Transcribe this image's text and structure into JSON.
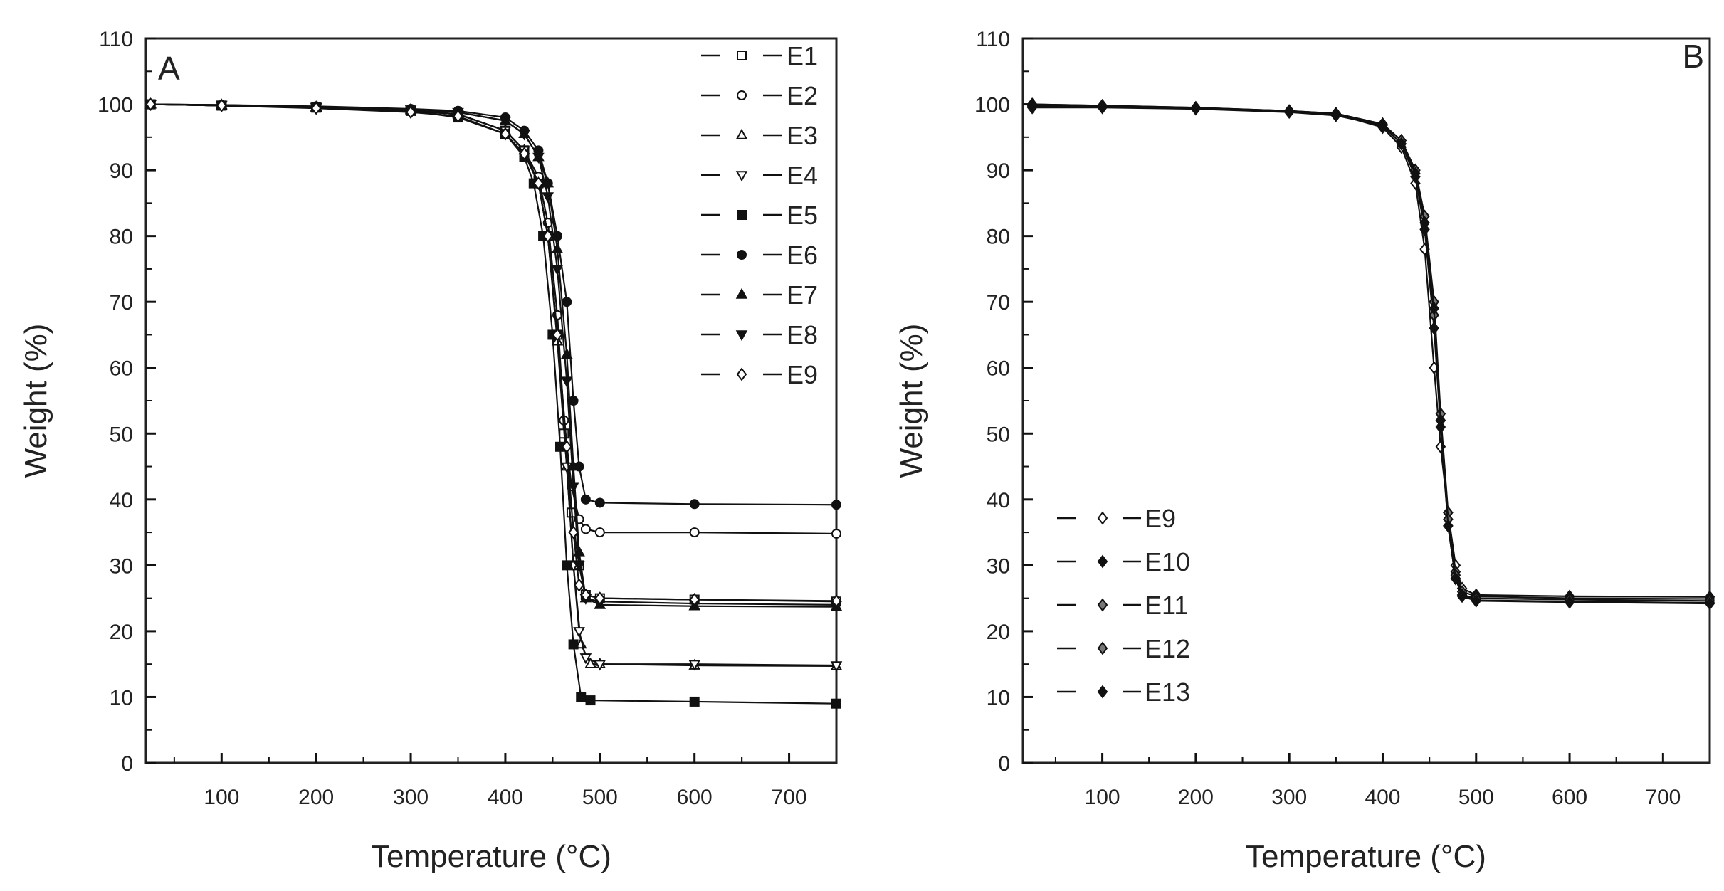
{
  "colors": {
    "ink": "#111111",
    "axis": "#222222",
    "background": "#ffffff"
  },
  "chart_data": [
    {
      "panel": "A",
      "type": "line",
      "xlabel": "Temperature (°C)",
      "ylabel": "Weight (%)",
      "xlim": [
        20,
        750
      ],
      "ylim": [
        0,
        110
      ],
      "xticks": [
        100,
        200,
        300,
        400,
        500,
        600,
        700
      ],
      "yticks": [
        0,
        10,
        20,
        30,
        40,
        50,
        60,
        70,
        80,
        90,
        100,
        110
      ],
      "grid": false,
      "legend_position": "top-right",
      "series": [
        {
          "name": "E1",
          "marker": "square-open",
          "x": [
            25,
            100,
            200,
            300,
            350,
            400,
            420,
            435,
            445,
            455,
            462,
            470,
            478,
            485,
            500,
            600,
            750
          ],
          "y": [
            100,
            99.8,
            99.5,
            99.0,
            98.5,
            96,
            93,
            88,
            80,
            65,
            50,
            38,
            30,
            25.5,
            25,
            24.8,
            24.5
          ]
        },
        {
          "name": "E2",
          "marker": "circle-open",
          "x": [
            25,
            100,
            200,
            300,
            350,
            400,
            420,
            435,
            445,
            455,
            462,
            470,
            478,
            485,
            500,
            600,
            750
          ],
          "y": [
            100,
            99.8,
            99.5,
            99.0,
            98.5,
            96,
            93,
            89,
            82,
            68,
            52,
            42,
            37,
            35.5,
            35,
            35,
            34.8
          ]
        },
        {
          "name": "E3",
          "marker": "triangle-up-open",
          "x": [
            25,
            100,
            200,
            300,
            350,
            400,
            420,
            435,
            445,
            455,
            465,
            472,
            480,
            490,
            500,
            600,
            750
          ],
          "y": [
            100,
            99.8,
            99.5,
            99.0,
            98.5,
            96,
            93,
            88,
            80,
            64,
            45,
            30,
            18,
            15,
            15,
            14.8,
            14.7
          ]
        },
        {
          "name": "E4",
          "marker": "triangle-down-open",
          "x": [
            25,
            100,
            200,
            300,
            350,
            400,
            420,
            435,
            445,
            455,
            465,
            472,
            478,
            485,
            500,
            600,
            750
          ],
          "y": [
            100,
            99.8,
            99.5,
            99.0,
            98.5,
            96,
            93,
            88,
            80,
            65,
            45,
            30,
            20,
            16,
            15,
            15,
            14.8
          ]
        },
        {
          "name": "E5",
          "marker": "square-filled",
          "x": [
            25,
            100,
            200,
            300,
            350,
            400,
            420,
            430,
            440,
            450,
            458,
            465,
            472,
            480,
            490,
            600,
            750
          ],
          "y": [
            100,
            99.8,
            99.5,
            99.0,
            98,
            95.5,
            92,
            88,
            80,
            65,
            48,
            30,
            18,
            10,
            9.5,
            9.3,
            9.0
          ]
        },
        {
          "name": "E6",
          "marker": "circle-filled",
          "x": [
            25,
            100,
            200,
            300,
            350,
            400,
            420,
            435,
            445,
            455,
            465,
            472,
            478,
            485,
            500,
            600,
            750
          ],
          "y": [
            100,
            99.9,
            99.7,
            99.3,
            99,
            98,
            96,
            93,
            88,
            80,
            70,
            55,
            45,
            40,
            39.5,
            39.3,
            39.2
          ]
        },
        {
          "name": "E7",
          "marker": "triangle-up-filled",
          "x": [
            25,
            100,
            200,
            300,
            350,
            400,
            420,
            435,
            445,
            455,
            465,
            472,
            478,
            485,
            500,
            600,
            750
          ],
          "y": [
            100,
            99.9,
            99.6,
            99.2,
            98.8,
            97.5,
            95.5,
            92,
            88,
            78,
            62,
            45,
            32,
            25,
            24,
            23.8,
            23.7
          ]
        },
        {
          "name": "E8",
          "marker": "triangle-down-filled",
          "x": [
            25,
            100,
            200,
            300,
            350,
            400,
            420,
            435,
            445,
            455,
            465,
            472,
            478,
            485,
            500,
            600,
            750
          ],
          "y": [
            100,
            99.9,
            99.6,
            99.2,
            98.8,
            97.5,
            95.5,
            92,
            86,
            75,
            58,
            42,
            30,
            25,
            24.5,
            24.2,
            24
          ]
        },
        {
          "name": "E9",
          "marker": "diamond-open",
          "x": [
            25,
            100,
            200,
            300,
            350,
            400,
            420,
            435,
            445,
            455,
            465,
            472,
            478,
            485,
            500,
            600,
            750
          ],
          "y": [
            100,
            99.8,
            99.4,
            98.8,
            98.2,
            95.5,
            92.5,
            88,
            80,
            65,
            48,
            35,
            27,
            25.5,
            25,
            24.8,
            24.6
          ]
        }
      ]
    },
    {
      "panel": "B",
      "type": "line",
      "xlabel": "Temperature (°C)",
      "ylabel": "Weight (%)",
      "xlim": [
        15,
        750
      ],
      "ylim": [
        0,
        110
      ],
      "xticks": [
        100,
        200,
        300,
        400,
        500,
        600,
        700
      ],
      "yticks": [
        0,
        10,
        20,
        30,
        40,
        50,
        60,
        70,
        80,
        90,
        100,
        110
      ],
      "grid": false,
      "legend_position": "bottom-left",
      "series": [
        {
          "name": "E9",
          "marker": "diamond-open",
          "x": [
            25,
            100,
            200,
            300,
            350,
            400,
            420,
            435,
            445,
            455,
            462,
            470,
            478,
            485,
            500,
            600,
            750
          ],
          "y": [
            100,
            99.8,
            99.5,
            99.0,
            98.5,
            96.5,
            93.5,
            88,
            78,
            60,
            48,
            38,
            30,
            26.5,
            25.5,
            25.3,
            25.2
          ]
        },
        {
          "name": "E10",
          "marker": "diamond-filled",
          "x": [
            25,
            100,
            200,
            300,
            350,
            400,
            420,
            435,
            445,
            455,
            462,
            470,
            478,
            485,
            500,
            600,
            750
          ],
          "y": [
            99.5,
            99.5,
            99.3,
            98.8,
            98.3,
            96.8,
            94,
            89,
            81,
            66,
            51,
            36,
            28,
            25.5,
            24.7,
            24.5,
            24.3
          ]
        },
        {
          "name": "E11",
          "marker": "diamond-half",
          "x": [
            25,
            100,
            200,
            300,
            350,
            400,
            420,
            435,
            445,
            455,
            462,
            470,
            478,
            485,
            500,
            600,
            750
          ],
          "y": [
            100,
            99.8,
            99.5,
            99.0,
            98.6,
            97,
            94.5,
            90,
            83,
            70,
            53,
            38,
            29,
            26,
            25.3,
            25,
            24.9
          ]
        },
        {
          "name": "E12",
          "marker": "diamond-half-alt",
          "x": [
            25,
            100,
            200,
            300,
            350,
            400,
            420,
            435,
            445,
            455,
            462,
            470,
            478,
            485,
            500,
            600,
            750
          ],
          "y": [
            99.8,
            99.7,
            99.4,
            99.0,
            98.6,
            97,
            94.5,
            90,
            82,
            68,
            52,
            37,
            28.5,
            25.5,
            25,
            24.8,
            24.6
          ]
        },
        {
          "name": "E13",
          "marker": "diamond-cross",
          "x": [
            25,
            100,
            200,
            300,
            350,
            400,
            420,
            435,
            445,
            455,
            462,
            470,
            478,
            485,
            500,
            600,
            750
          ],
          "y": [
            99.7,
            99.6,
            99.4,
            99.0,
            98.5,
            96.8,
            94,
            89.5,
            82,
            69,
            52,
            36,
            28,
            25.3,
            24.6,
            24.4,
            24.2
          ]
        }
      ]
    }
  ]
}
